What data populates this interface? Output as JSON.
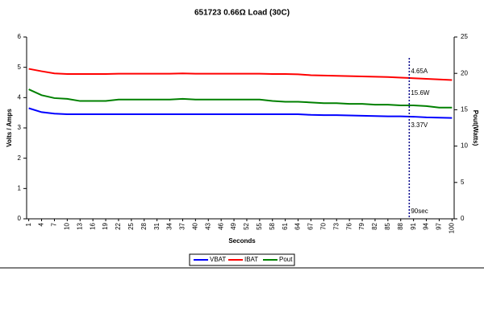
{
  "chart_data": {
    "type": "line",
    "title": "651723 0.66Ω Load (30C)",
    "xlabel": "Seconds",
    "ylabel": "Volts / Amps",
    "y2label": "Pout(Watts)",
    "x": [
      1,
      4,
      7,
      10,
      13,
      16,
      19,
      22,
      25,
      28,
      31,
      34,
      37,
      40,
      43,
      46,
      49,
      52,
      55,
      58,
      61,
      64,
      67,
      70,
      73,
      76,
      79,
      82,
      85,
      88,
      91,
      94,
      97,
      100
    ],
    "xlim": [
      0.5,
      100.5
    ],
    "xticks": [
      1,
      4,
      7,
      10,
      13,
      16,
      19,
      22,
      25,
      28,
      31,
      34,
      37,
      40,
      43,
      46,
      49,
      52,
      55,
      58,
      61,
      64,
      67,
      70,
      73,
      76,
      79,
      82,
      85,
      88,
      91,
      94,
      97,
      100
    ],
    "ylim": [
      0,
      6
    ],
    "yticks": [
      0,
      1,
      2,
      3,
      4,
      5,
      6
    ],
    "y2lim": [
      0,
      25
    ],
    "y2ticks": [
      0,
      5,
      10,
      15,
      20,
      25
    ],
    "series": [
      {
        "name": "VBAT",
        "color": "#0000ff",
        "values": [
          3.65,
          3.52,
          3.47,
          3.45,
          3.45,
          3.45,
          3.45,
          3.45,
          3.45,
          3.45,
          3.45,
          3.45,
          3.45,
          3.45,
          3.45,
          3.45,
          3.45,
          3.45,
          3.45,
          3.45,
          3.45,
          3.45,
          3.43,
          3.42,
          3.42,
          3.41,
          3.4,
          3.39,
          3.38,
          3.38,
          3.37,
          3.35,
          3.34,
          3.33
        ]
      },
      {
        "name": "IBAT",
        "color": "#ff0000",
        "values": [
          4.95,
          4.87,
          4.8,
          4.78,
          4.78,
          4.78,
          4.78,
          4.79,
          4.79,
          4.79,
          4.79,
          4.79,
          4.8,
          4.79,
          4.79,
          4.79,
          4.79,
          4.79,
          4.79,
          4.78,
          4.78,
          4.77,
          4.74,
          4.73,
          4.72,
          4.71,
          4.7,
          4.69,
          4.68,
          4.66,
          4.64,
          4.62,
          4.6,
          4.58
        ]
      },
      {
        "name": "Pout",
        "color": "#008000",
        "axis": "y2",
        "values": [
          17.8,
          17.0,
          16.6,
          16.5,
          16.2,
          16.2,
          16.2,
          16.4,
          16.4,
          16.4,
          16.4,
          16.4,
          16.5,
          16.4,
          16.4,
          16.4,
          16.4,
          16.4,
          16.4,
          16.2,
          16.1,
          16.1,
          16.0,
          15.9,
          15.9,
          15.8,
          15.8,
          15.7,
          15.7,
          15.6,
          15.6,
          15.5,
          15.3,
          15.3
        ]
      }
    ],
    "vline": {
      "x": 90,
      "label": "90sec",
      "color": "#00008b"
    },
    "annotations": [
      {
        "text": "4.65A",
        "x": 90,
        "y": 4.65
      },
      {
        "text": "15.6W",
        "x": 90,
        "y": 15.6,
        "axis": "y2"
      },
      {
        "text": "3.37V",
        "x": 90,
        "y": 3.37
      }
    ],
    "legend": "bottom"
  }
}
